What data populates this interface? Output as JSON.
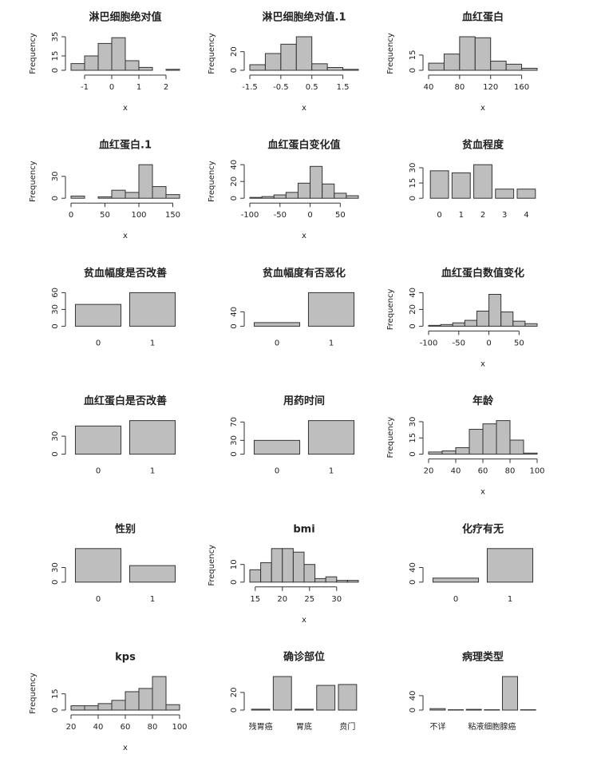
{
  "chart_data": [
    {
      "type": "histogram",
      "title": "淋巴细胞绝对值",
      "xlabel": "x",
      "ylabel": "Frequency",
      "color": "#bebebe",
      "bins": [
        -1.5,
        -1,
        -0.5,
        0,
        0.5,
        1,
        1.5,
        2,
        2.5
      ],
      "counts": [
        7,
        15,
        28,
        34,
        10,
        3,
        0,
        1
      ],
      "xlim": [
        -1.5,
        2.5
      ],
      "xticks": [
        -1,
        0,
        1,
        2
      ],
      "ylim": [
        0,
        35
      ],
      "yticks": [
        0,
        15,
        35
      ]
    },
    {
      "type": "histogram",
      "title": "淋巴细胞绝对值.1",
      "xlabel": "x",
      "ylabel": "Frequency",
      "color": "#bebebe",
      "bins": [
        -1.5,
        -1,
        -0.5,
        0,
        0.5,
        1,
        1.5,
        2
      ],
      "counts": [
        6,
        18,
        28,
        36,
        7,
        3,
        1
      ],
      "xlim": [
        -1.5,
        2
      ],
      "xticks": [
        -1.5,
        -0.5,
        0.5,
        1.5
      ],
      "ylim": [
        0,
        36
      ],
      "yticks": [
        0,
        20
      ]
    },
    {
      "type": "histogram",
      "title": "血红蛋白",
      "xlabel": "x",
      "ylabel": "Frequency",
      "color": "#bebebe",
      "bins": [
        40,
        60,
        80,
        100,
        120,
        140,
        160,
        180
      ],
      "counts": [
        7,
        16,
        33,
        32,
        9,
        6,
        2
      ],
      "xlim": [
        40,
        180
      ],
      "xticks": [
        40,
        80,
        120,
        160
      ],
      "ylim": [
        0,
        33
      ],
      "yticks": [
        0,
        15
      ]
    },
    {
      "type": "histogram",
      "title": "血红蛋白.1",
      "xlabel": "x",
      "ylabel": "Frequency",
      "color": "#bebebe",
      "bins": [
        0,
        20,
        40,
        60,
        80,
        100,
        120,
        140,
        160
      ],
      "counts": [
        3,
        0,
        2,
        11,
        8,
        46,
        16,
        5
      ],
      "xlim": [
        0,
        160
      ],
      "xticks": [
        0,
        50,
        100,
        150
      ],
      "ylim": [
        0,
        46
      ],
      "yticks": [
        0,
        30
      ]
    },
    {
      "type": "histogram",
      "title": "血红蛋白变化值",
      "xlabel": "x",
      "ylabel": "Frequency",
      "color": "#bebebe",
      "bins": [
        -100,
        -80,
        -60,
        -40,
        -20,
        0,
        20,
        40,
        60,
        80
      ],
      "counts": [
        1,
        2,
        4,
        7,
        18,
        38,
        17,
        6,
        3
      ],
      "xlim": [
        -100,
        80
      ],
      "xticks": [
        -100,
        -50,
        0,
        50
      ],
      "ylim": [
        0,
        40
      ],
      "yticks": [
        0,
        20,
        40
      ]
    },
    {
      "type": "bar",
      "title": "贫血程度",
      "color": "#bebebe",
      "categories": [
        "0",
        "1",
        "2",
        "3",
        "4"
      ],
      "values": [
        27,
        25,
        33,
        9,
        9
      ],
      "ylim": [
        0,
        33
      ],
      "yticks": [
        0,
        15,
        30
      ]
    },
    {
      "type": "bar",
      "title": "贫血幅度是否改善",
      "color": "#bebebe",
      "categories": [
        "0",
        "1"
      ],
      "values": [
        39,
        60
      ],
      "ylim": [
        0,
        60
      ],
      "yticks": [
        0,
        30,
        60
      ]
    },
    {
      "type": "bar",
      "title": "贫血幅度有否恶化",
      "color": "#bebebe",
      "categories": [
        "0",
        "1"
      ],
      "values": [
        10,
        93
      ],
      "ylim": [
        0,
        93
      ],
      "yticks": [
        0,
        40
      ]
    },
    {
      "type": "histogram",
      "title": "血红蛋白数值变化",
      "xlabel": "x",
      "ylabel": "Frequency",
      "color": "#bebebe",
      "bins": [
        -100,
        -80,
        -60,
        -40,
        -20,
        0,
        20,
        40,
        60,
        80
      ],
      "counts": [
        1,
        2,
        4,
        7,
        18,
        38,
        17,
        6,
        3
      ],
      "xlim": [
        -100,
        80
      ],
      "xticks": [
        -100,
        -50,
        0,
        50
      ],
      "ylim": [
        0,
        40
      ],
      "yticks": [
        0,
        20,
        40
      ]
    },
    {
      "type": "bar",
      "title": "血红蛋白是否改善",
      "color": "#bebebe",
      "categories": [
        "0",
        "1"
      ],
      "values": [
        47,
        56
      ],
      "ylim": [
        0,
        56
      ],
      "yticks": [
        0,
        30
      ]
    },
    {
      "type": "bar",
      "title": "用药时间",
      "color": "#bebebe",
      "categories": [
        "0",
        "1"
      ],
      "values": [
        30,
        73
      ],
      "ylim": [
        0,
        73
      ],
      "yticks": [
        0,
        30,
        70
      ]
    },
    {
      "type": "histogram",
      "title": "年龄",
      "xlabel": "x",
      "ylabel": "Frequency",
      "color": "#bebebe",
      "bins": [
        20,
        30,
        40,
        50,
        60,
        70,
        80,
        90,
        100
      ],
      "counts": [
        2,
        3,
        6,
        23,
        28,
        31,
        13,
        1
      ],
      "xlim": [
        20,
        100
      ],
      "xticks": [
        20,
        40,
        60,
        80,
        100
      ],
      "ylim": [
        0,
        31
      ],
      "yticks": [
        0,
        15,
        30
      ]
    },
    {
      "type": "bar",
      "title": "性别",
      "color": "#bebebe",
      "categories": [
        "0",
        "1"
      ],
      "values": [
        69,
        34
      ],
      "ylim": [
        0,
        69
      ],
      "yticks": [
        0,
        30
      ]
    },
    {
      "type": "histogram",
      "title": "bmi",
      "xlabel": "x",
      "ylabel": "Frequency",
      "color": "#bebebe",
      "bins": [
        14,
        16,
        18,
        20,
        22,
        24,
        26,
        28,
        30,
        32,
        34
      ],
      "counts": [
        7,
        11,
        19,
        19,
        17,
        10,
        2,
        3,
        1,
        1
      ],
      "xlim": [
        14,
        34
      ],
      "xticks": [
        15,
        20,
        25,
        30
      ],
      "ylim": [
        0,
        19
      ],
      "yticks": [
        0,
        10
      ]
    },
    {
      "type": "bar",
      "title": "化疗有无",
      "color": "#bebebe",
      "categories": [
        "0",
        "1"
      ],
      "values": [
        11,
        92
      ],
      "ylim": [
        0,
        92
      ],
      "yticks": [
        0,
        40
      ]
    },
    {
      "type": "histogram",
      "title": "kps",
      "xlabel": "x",
      "ylabel": "Frequency",
      "color": "#bebebe",
      "bins": [
        20,
        30,
        40,
        50,
        60,
        70,
        80,
        90,
        100
      ],
      "counts": [
        4,
        4,
        6,
        9,
        17,
        20,
        31,
        5
      ],
      "xlim": [
        20,
        100
      ],
      "xticks": [
        20,
        40,
        60,
        80,
        100
      ],
      "ylim": [
        0,
        31
      ],
      "yticks": [
        0,
        15
      ]
    },
    {
      "type": "bar",
      "title": "确诊部位",
      "color": "#bebebe",
      "categories": [
        "残胃癌",
        null,
        "胃底",
        null,
        "贲门"
      ],
      "values": [
        1,
        38,
        1,
        28,
        29
      ],
      "ylim": [
        0,
        38
      ],
      "yticks": [
        0,
        20
      ]
    },
    {
      "type": "bar",
      "title": "病理类型",
      "color": "#bebebe",
      "categories": [
        "不详",
        null,
        null,
        "粘液细胞腺癌",
        null,
        null
      ],
      "values": [
        4,
        1,
        2,
        1,
        93,
        1
      ],
      "ylim": [
        0,
        93
      ],
      "yticks": [
        0,
        40
      ]
    }
  ]
}
